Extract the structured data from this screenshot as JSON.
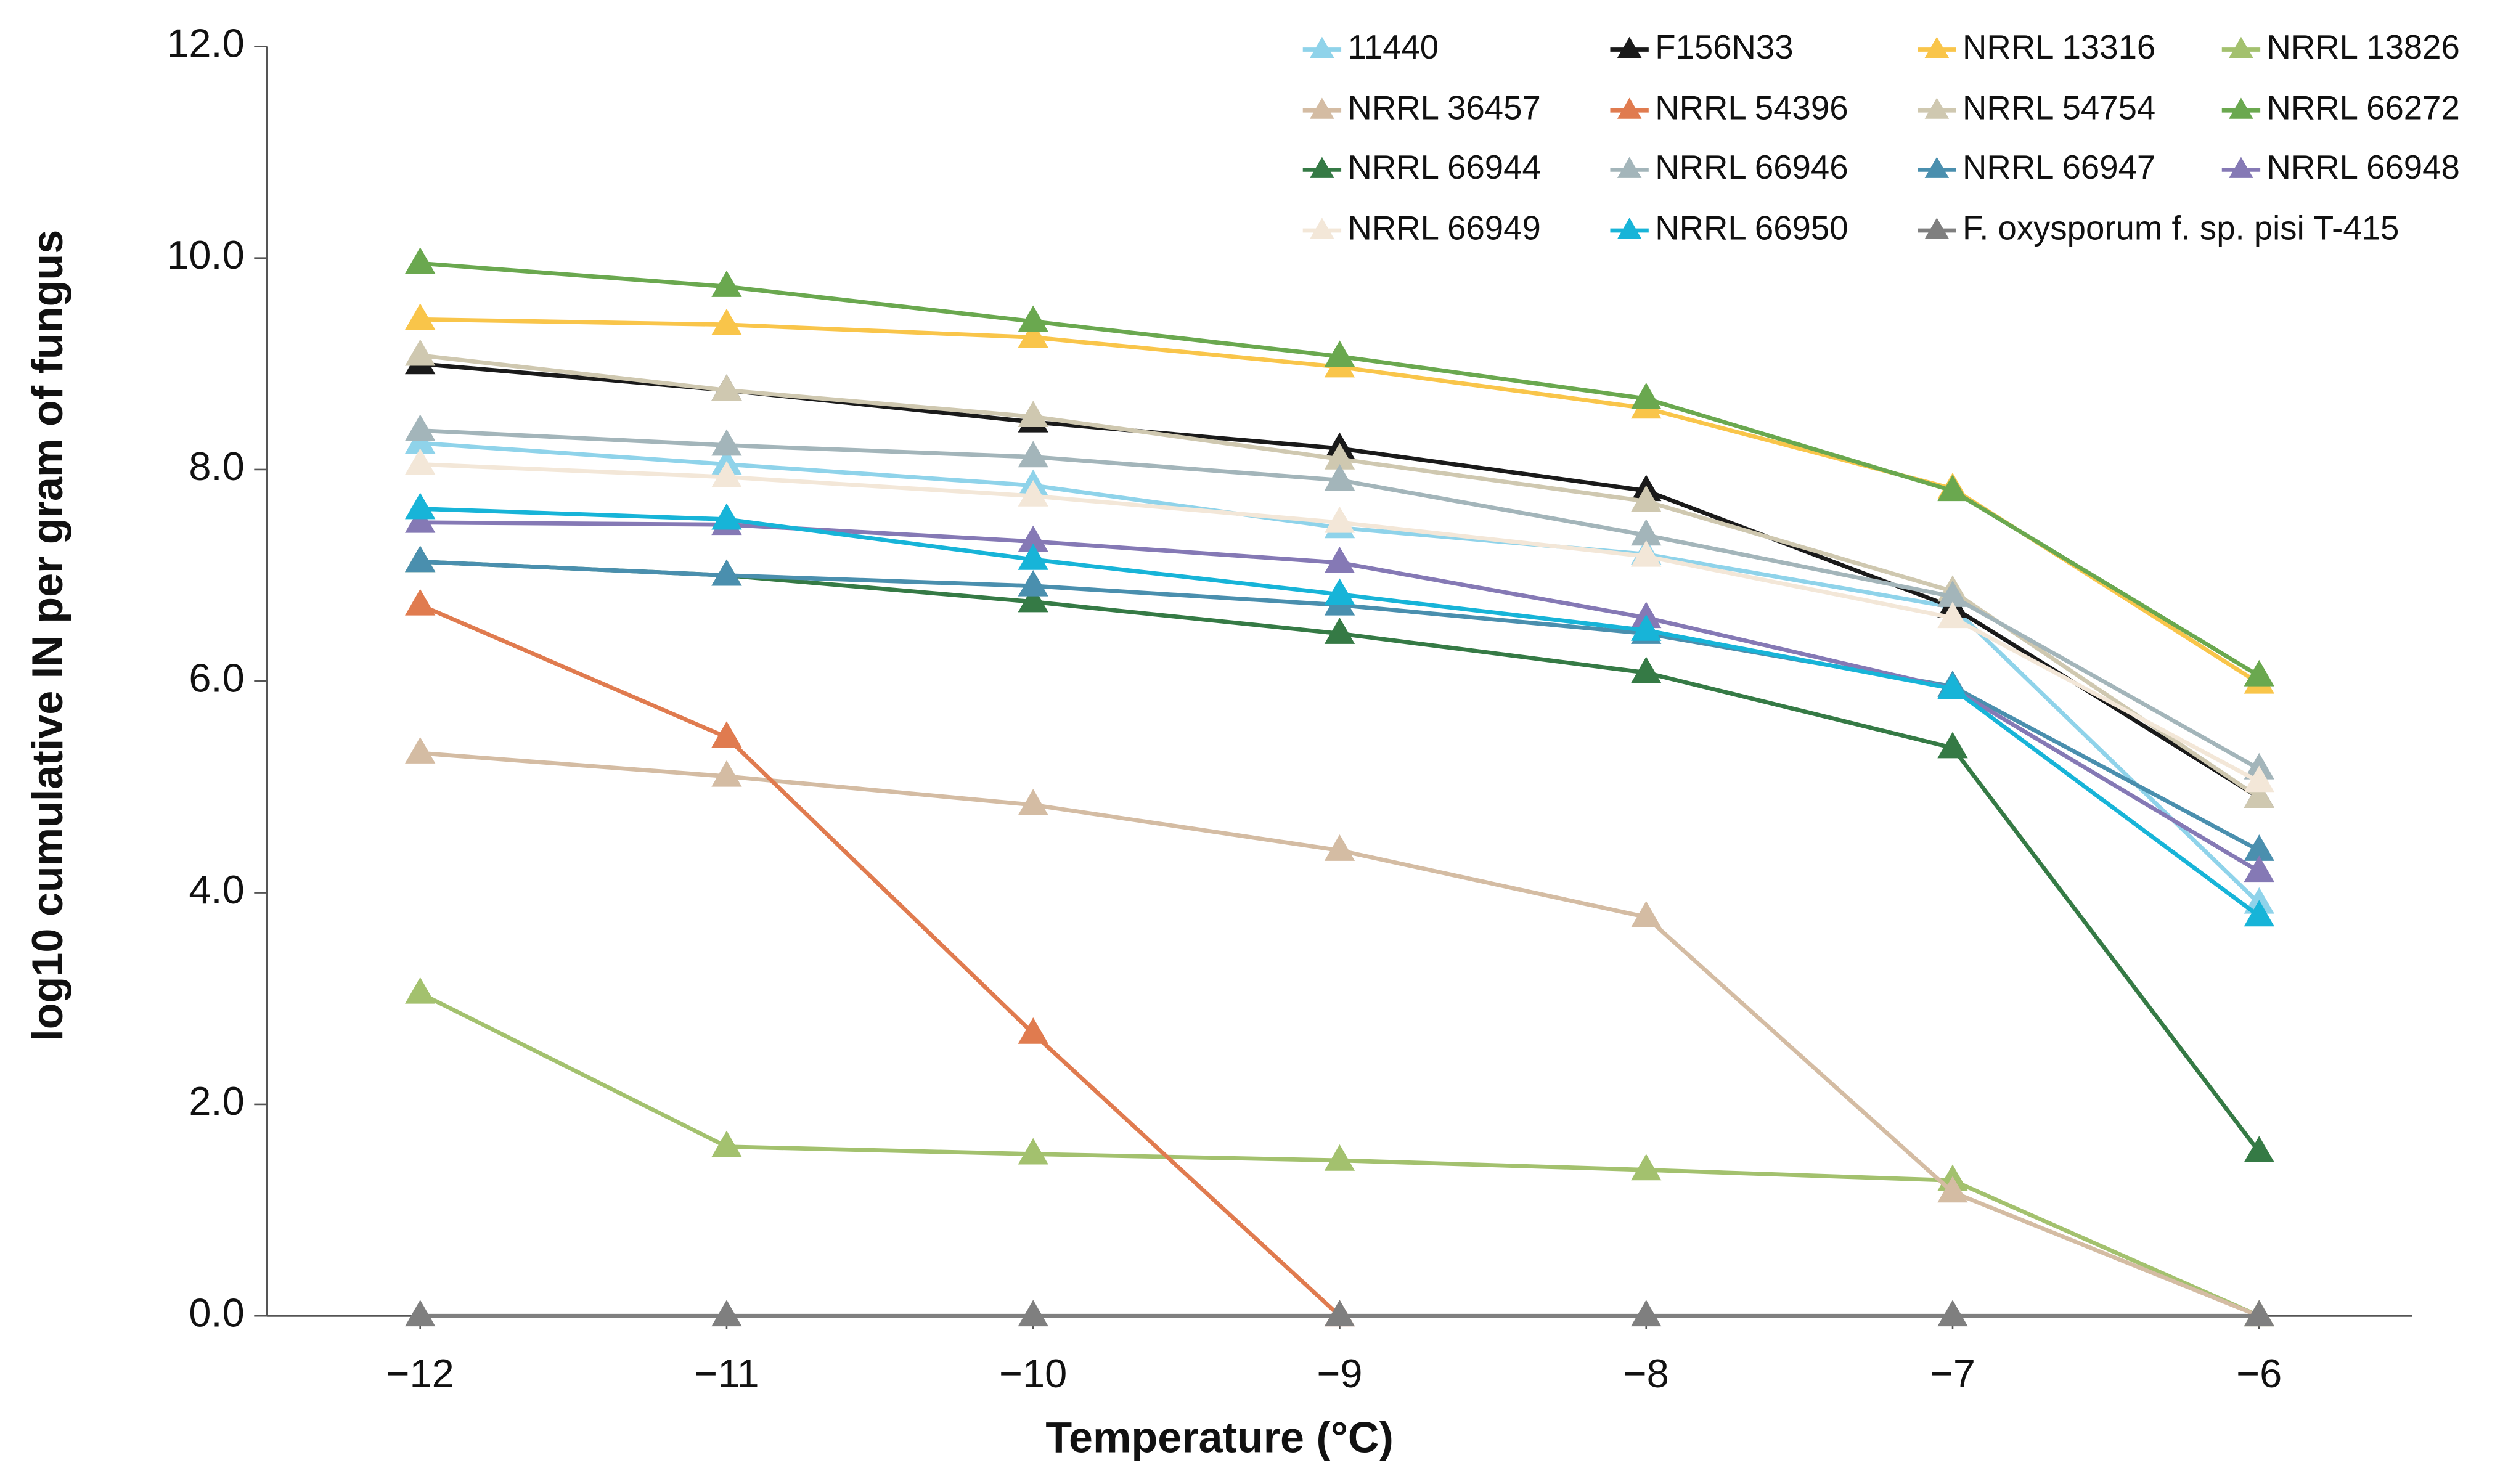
{
  "chart_data": {
    "type": "line",
    "x_label": "Temperature (°C)",
    "y_label": "log10 cumulative IN per gram of fungus",
    "x": [
      -12,
      -11,
      -10,
      -9,
      -8,
      -7,
      -6
    ],
    "xlim": [
      -12.5,
      -5.5
    ],
    "xticks": [
      {
        "value": -12,
        "label": "−12"
      },
      {
        "value": -11,
        "label": "−11"
      },
      {
        "value": -10,
        "label": "−10"
      },
      {
        "value": -9,
        "label": "−9"
      },
      {
        "value": -8,
        "label": "−8"
      },
      {
        "value": -7,
        "label": "−7"
      },
      {
        "value": -6,
        "label": "−6"
      }
    ],
    "ylim": [
      0,
      12
    ],
    "yticks": [
      {
        "value": 0,
        "label": "0.0"
      },
      {
        "value": 2,
        "label": "2.0"
      },
      {
        "value": 4,
        "label": "4.0"
      },
      {
        "value": 6,
        "label": "6.0"
      },
      {
        "value": 8,
        "label": "8.0"
      },
      {
        "value": 10,
        "label": "10.0"
      },
      {
        "value": 12,
        "label": "12.0"
      }
    ],
    "grid": false,
    "legend": "top-right",
    "series": [
      {
        "name": "11440",
        "color": "#8fd3ea",
        "values": [
          8.25,
          8.05,
          7.85,
          7.45,
          7.2,
          6.7,
          3.9
        ]
      },
      {
        "name": "F156N33",
        "color": "#1a1a1a",
        "values": [
          9.0,
          8.75,
          8.45,
          8.2,
          7.8,
          6.7,
          4.9
        ]
      },
      {
        "name": "NRRL 13316",
        "color": "#f9c54a",
        "values": [
          9.42,
          9.37,
          9.25,
          8.97,
          8.58,
          7.82,
          5.98
        ]
      },
      {
        "name": "NRRL 13826",
        "color": "#a3c16e",
        "values": [
          3.05,
          1.6,
          1.53,
          1.47,
          1.38,
          1.28,
          0.0
        ]
      },
      {
        "name": "NRRL 36457",
        "color": "#d4bca3",
        "values": [
          5.32,
          5.1,
          4.83,
          4.4,
          3.77,
          1.17,
          0.0
        ]
      },
      {
        "name": "NRRL 54396",
        "color": "#e07b4f",
        "values": [
          6.72,
          5.47,
          2.67,
          0.0,
          null,
          null,
          null
        ]
      },
      {
        "name": "NRRL 54754",
        "color": "#cfc8b0",
        "values": [
          9.08,
          8.75,
          8.5,
          8.1,
          7.7,
          6.85,
          4.9
        ]
      },
      {
        "name": "NRRL 66272",
        "color": "#6aa84f",
        "values": [
          9.95,
          9.73,
          9.4,
          9.07,
          8.67,
          7.8,
          6.05
        ]
      },
      {
        "name": "NRRL 66944",
        "color": "#357a45",
        "values": [
          7.13,
          7.0,
          6.75,
          6.45,
          6.08,
          5.37,
          1.55
        ]
      },
      {
        "name": "NRRL 66946",
        "color": "#a3b5ba",
        "values": [
          8.37,
          8.23,
          8.12,
          7.9,
          7.38,
          6.8,
          5.17
        ]
      },
      {
        "name": "NRRL 66947",
        "color": "#4a8fae",
        "values": [
          7.13,
          7.0,
          6.9,
          6.72,
          6.45,
          5.95,
          4.4
        ]
      },
      {
        "name": "NRRL 66948",
        "color": "#8579b5",
        "values": [
          7.5,
          7.48,
          7.32,
          7.12,
          6.6,
          5.93,
          4.2
        ]
      },
      {
        "name": "NRRL 66949",
        "color": "#f3e7d8",
        "values": [
          8.05,
          7.93,
          7.75,
          7.5,
          7.18,
          6.6,
          5.05
        ]
      },
      {
        "name": "NRRL 66950",
        "color": "#17b4d8",
        "values": [
          7.63,
          7.53,
          7.15,
          6.82,
          6.48,
          5.93,
          3.78
        ]
      },
      {
        "name": "F. oxysporum f. sp. pisi T-415",
        "color": "#7f7f7f",
        "values": [
          0,
          0,
          0,
          0,
          0,
          0,
          0
        ]
      }
    ]
  }
}
